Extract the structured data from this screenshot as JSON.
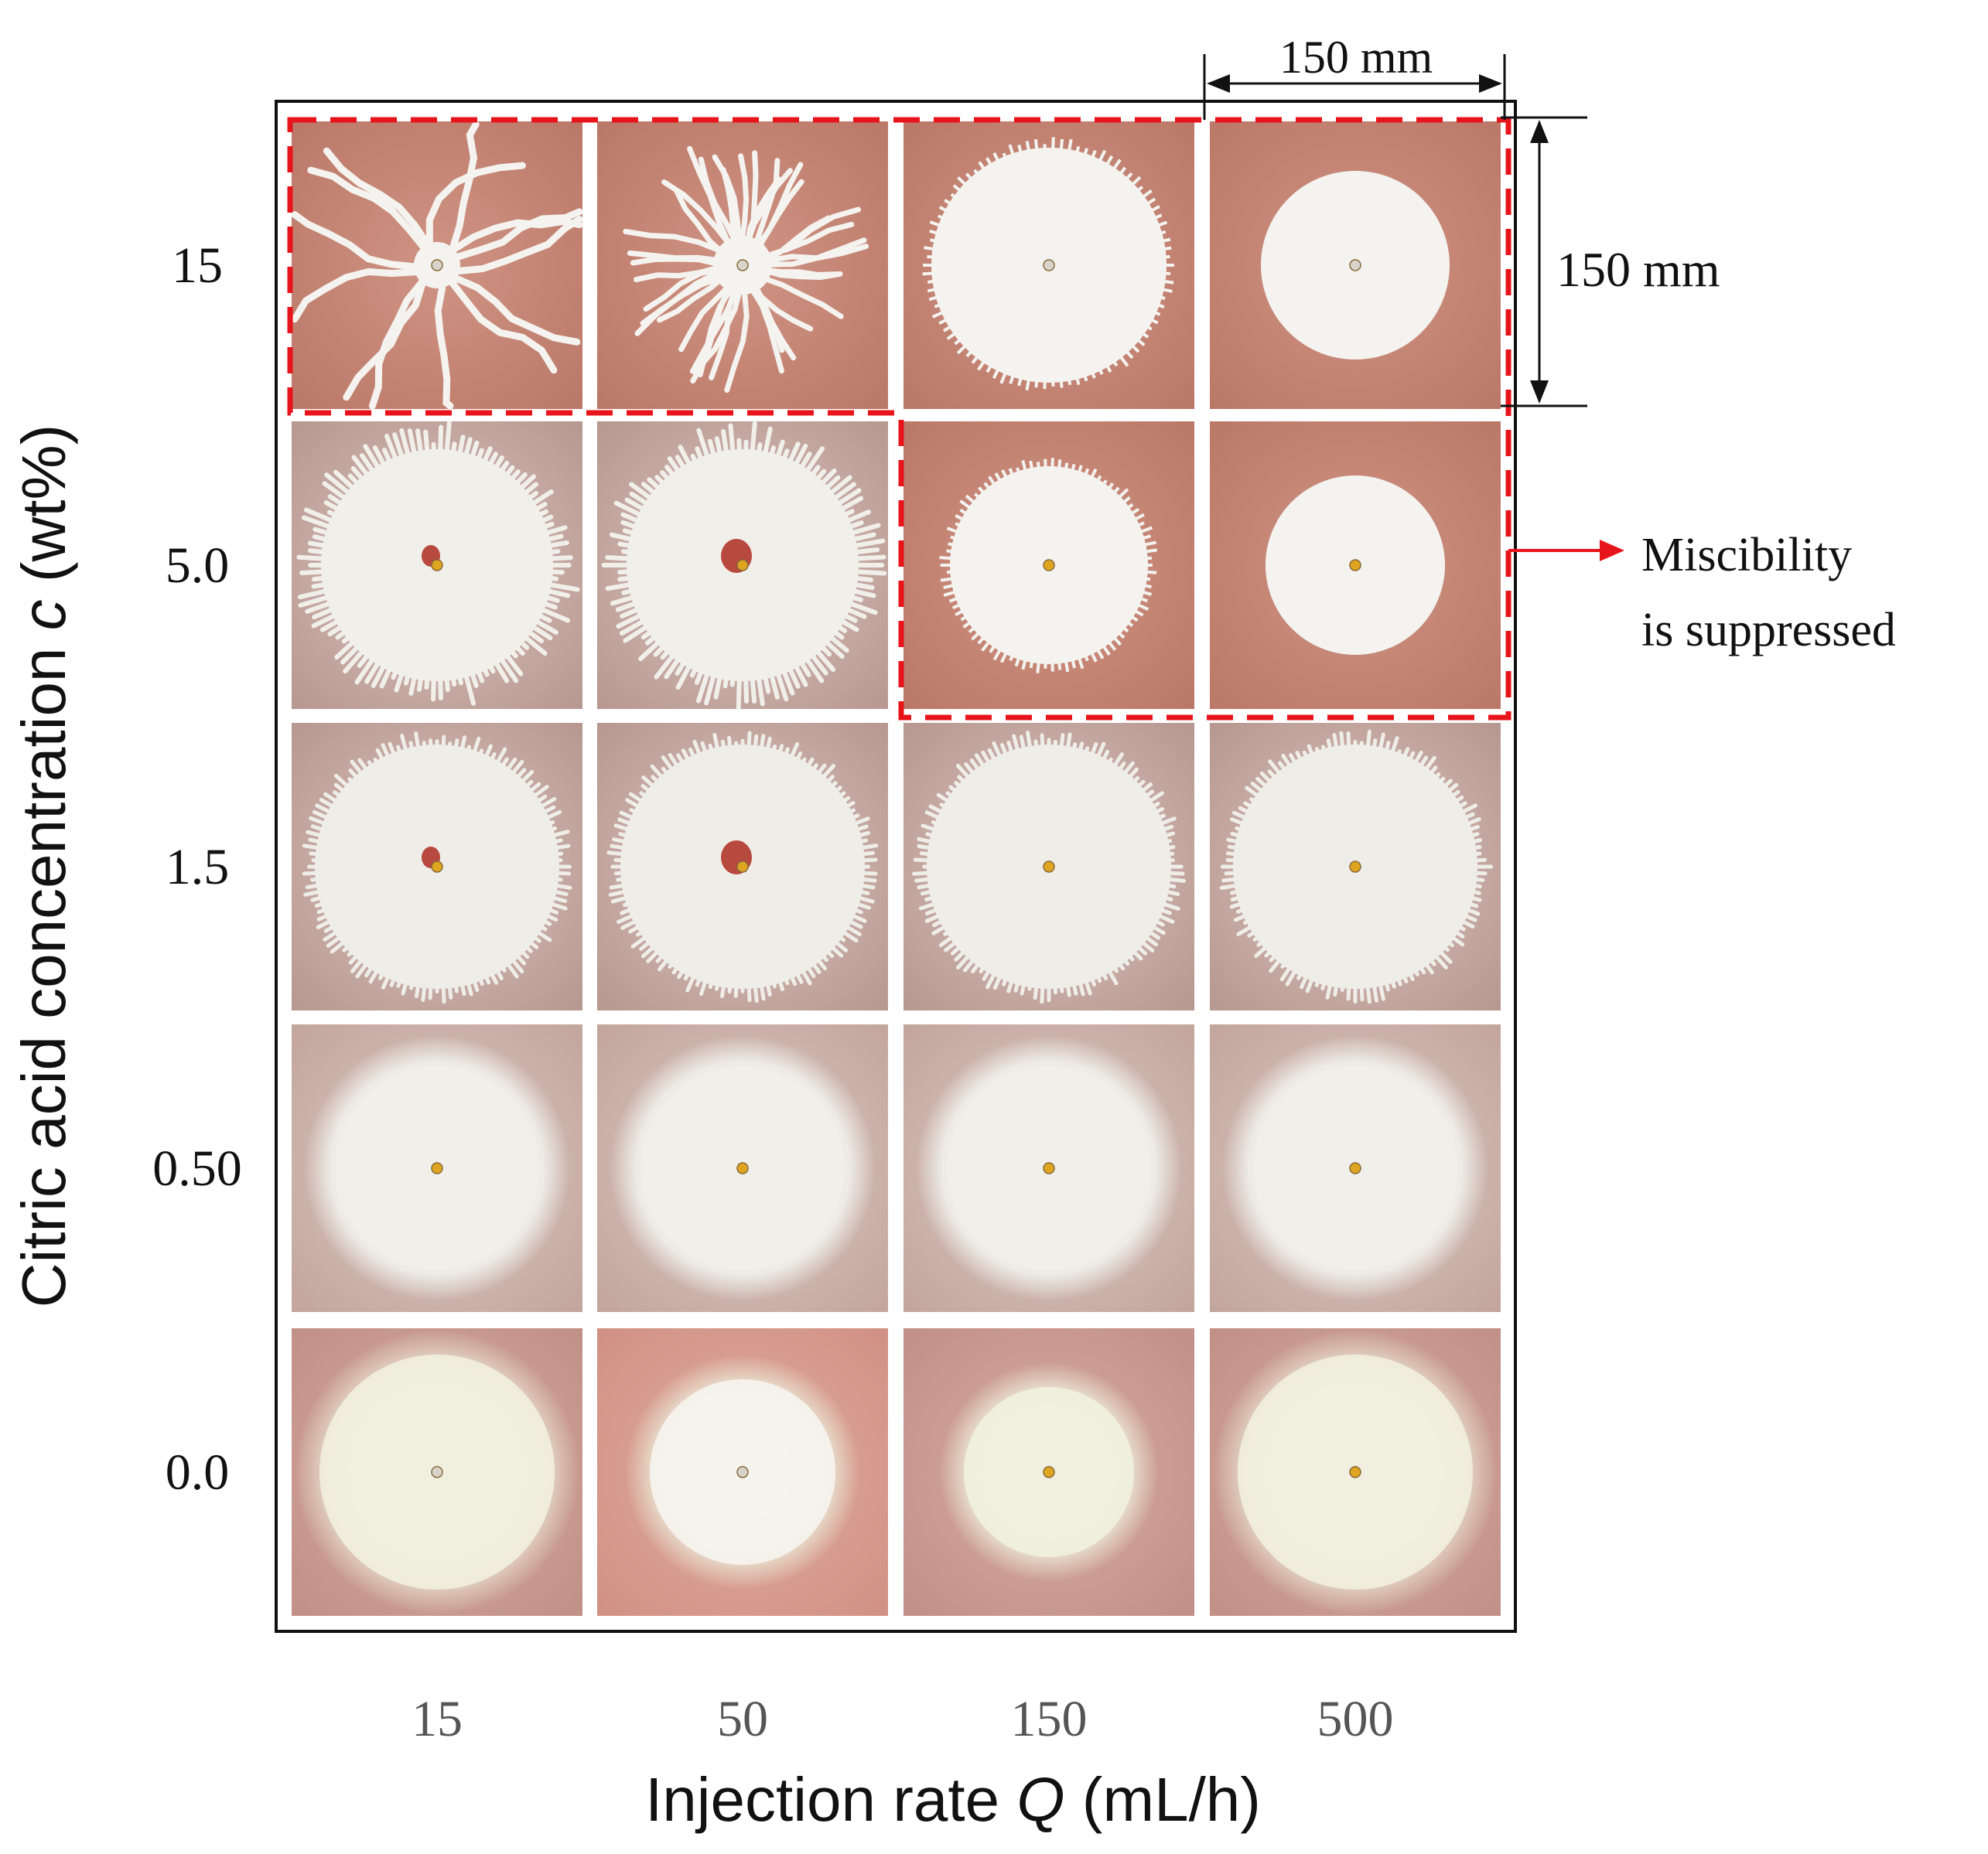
{
  "figure": {
    "y_axis_title": "Citric acid concentration c (wt%)",
    "y_axis_title_prefix": "Citric acid concentration ",
    "y_axis_title_var": "c",
    "y_axis_title_suffix": " (wt%)",
    "x_axis_title": "Injection rate Q (mL/h)",
    "x_axis_title_prefix": "Injection rate ",
    "x_axis_title_var": "Q",
    "x_axis_title_suffix": " (mL/h)",
    "row_labels": [
      "15",
      "5.0",
      "1.5",
      "0.50",
      "0.0"
    ],
    "col_labels": [
      "15",
      "50",
      "150",
      "500"
    ],
    "scale_horizontal": "150 mm",
    "scale_vertical": "150 mm",
    "annotation_line1": "Miscibility",
    "annotation_line2": "is suppressed",
    "colors": {
      "highlight": "#e8141b",
      "frame": "#111111",
      "tick_text": "#555555"
    }
  },
  "panels": [
    {
      "c": "15",
      "Q": "15",
      "pattern": "viscous-fingering-long-branches",
      "suppressed": true
    },
    {
      "c": "15",
      "Q": "50",
      "pattern": "dense-fingers",
      "suppressed": true
    },
    {
      "c": "15",
      "Q": "150",
      "pattern": "fringed-disc",
      "suppressed": true
    },
    {
      "c": "15",
      "Q": "500",
      "pattern": "smooth-disc",
      "suppressed": true
    },
    {
      "c": "5.0",
      "Q": "15",
      "pattern": "feathery-disc",
      "suppressed": false
    },
    {
      "c": "5.0",
      "Q": "50",
      "pattern": "feathery-disc",
      "suppressed": false
    },
    {
      "c": "5.0",
      "Q": "150",
      "pattern": "fringed-disc",
      "suppressed": true
    },
    {
      "c": "5.0",
      "Q": "500",
      "pattern": "smooth-disc",
      "suppressed": true
    },
    {
      "c": "1.5",
      "Q": "15",
      "pattern": "fuzzy-disc",
      "suppressed": false
    },
    {
      "c": "1.5",
      "Q": "50",
      "pattern": "fuzzy-disc",
      "suppressed": false
    },
    {
      "c": "1.5",
      "Q": "150",
      "pattern": "fuzzy-disc",
      "suppressed": false
    },
    {
      "c": "1.5",
      "Q": "500",
      "pattern": "fuzzy-disc",
      "suppressed": false
    },
    {
      "c": "0.50",
      "Q": "15",
      "pattern": "diffuse-disc",
      "suppressed": false
    },
    {
      "c": "0.50",
      "Q": "50",
      "pattern": "diffuse-disc",
      "suppressed": false
    },
    {
      "c": "0.50",
      "Q": "150",
      "pattern": "diffuse-disc",
      "suppressed": false
    },
    {
      "c": "0.50",
      "Q": "500",
      "pattern": "diffuse-disc",
      "suppressed": false
    },
    {
      "c": "0.0",
      "Q": "15",
      "pattern": "blurred-disc",
      "suppressed": false
    },
    {
      "c": "0.0",
      "Q": "50",
      "pattern": "blurred-disc",
      "suppressed": false
    },
    {
      "c": "0.0",
      "Q": "150",
      "pattern": "blurred-disc",
      "suppressed": false
    },
    {
      "c": "0.0",
      "Q": "500",
      "pattern": "blurred-disc",
      "suppressed": false
    }
  ]
}
